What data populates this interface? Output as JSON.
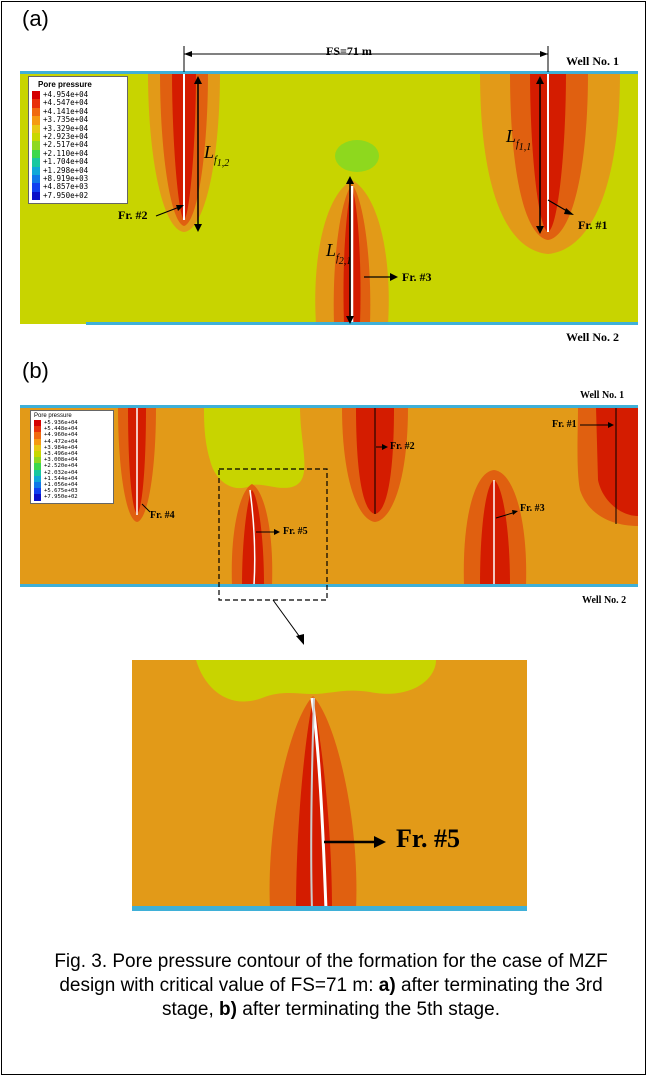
{
  "panel_a": {
    "label": "(a)",
    "fs_label": "FS=71 m",
    "well_top": "Well No. 1",
    "well_bottom": "Well No. 2",
    "fractures": [
      "Fr. #1",
      "Fr. #2",
      "Fr. #3"
    ],
    "lengths": [
      {
        "main": "L",
        "sub": "f",
        "subsub": "1,2"
      },
      {
        "main": "L",
        "sub": "f",
        "subsub": "1,1"
      },
      {
        "main": "L",
        "sub": "f",
        "subsub": "2,1"
      }
    ],
    "legend": {
      "title": "Pore pressure",
      "values": [
        "+4.954e+04",
        "+4.547e+04",
        "+4.141e+04",
        "+3.735e+04",
        "+3.329e+04",
        "+2.923e+04",
        "+2.517e+04",
        "+2.110e+04",
        "+1.704e+04",
        "+1.298e+04",
        "+8.919e+03",
        "+4.857e+03",
        "+7.950e+02"
      ],
      "colors": [
        "#d40000",
        "#e8300a",
        "#f06a10",
        "#f59a12",
        "#e8c814",
        "#c8d800",
        "#90d820",
        "#3cd84c",
        "#18c8a0",
        "#10a8d8",
        "#1078e8",
        "#1040f0",
        "#0a10c8"
      ]
    }
  },
  "panel_b": {
    "label": "(b)",
    "well_top": "Well No. 1",
    "well_bottom": "Well No. 2",
    "fractures": [
      "Fr. #1",
      "Fr. #2",
      "Fr. #3",
      "Fr. #4",
      "Fr. #5"
    ],
    "legend": {
      "title": "Pore pressure",
      "values": [
        "+5.936e+04",
        "+5.448e+04",
        "+4.960e+04",
        "+4.472e+04",
        "+3.984e+04",
        "+3.496e+04",
        "+3.008e+04",
        "+2.520e+04",
        "+2.032e+04",
        "+1.544e+04",
        "+1.056e+04",
        "+5.675e+03",
        "+7.950e+02"
      ],
      "colors": [
        "#d40000",
        "#e8300a",
        "#f06a10",
        "#f59a12",
        "#e8c814",
        "#c8d800",
        "#90d820",
        "#3cd84c",
        "#18c8a0",
        "#10a8d8",
        "#1078e8",
        "#1040f0",
        "#0a10c8"
      ]
    }
  },
  "zoom": {
    "fracture": "Fr. #5"
  },
  "caption": {
    "prefix": "Fig. 3. Pore pressure contour of the formation for the case of MZF design with critical value of FS=71 m: ",
    "a_label": "a)",
    "a_text": " after terminating the 3rd stage, ",
    "b_label": "b)",
    "b_text": " after terminating the 5th stage."
  },
  "colors": {
    "background_a": "#c8d400",
    "orange": "#e29a18",
    "dark_orange": "#e06010",
    "red": "#d41c00",
    "well_line": "#3fb0d8",
    "green_blob": "#8ed81e"
  }
}
